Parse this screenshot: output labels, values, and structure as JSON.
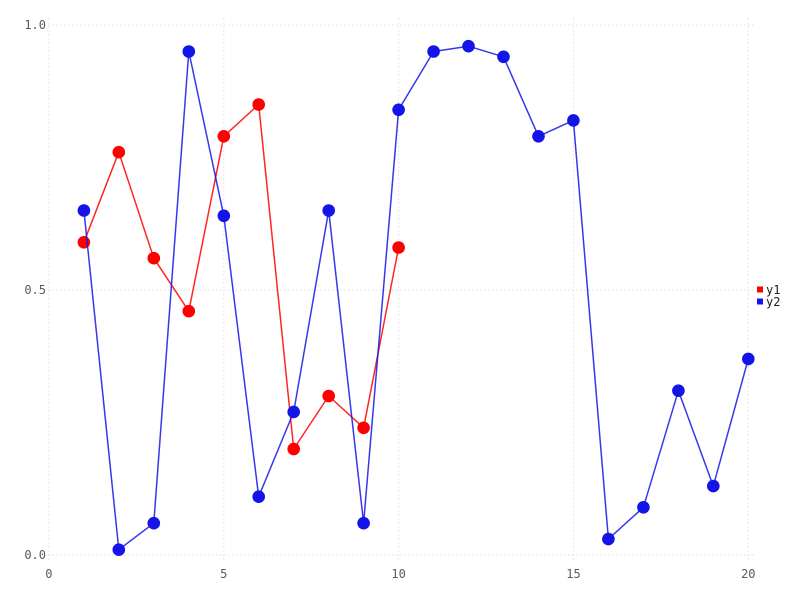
{
  "chart_data": {
    "type": "line",
    "title": "",
    "xlabel": "",
    "ylabel": "",
    "xlim": [
      0,
      20
    ],
    "ylim": [
      0.0,
      1.0
    ],
    "grid": "dotted",
    "legend_position": "right",
    "x_ticks": [
      {
        "v": 0,
        "label": "0"
      },
      {
        "v": 5,
        "label": "5"
      },
      {
        "v": 10,
        "label": "10"
      },
      {
        "v": 15,
        "label": "15"
      },
      {
        "v": 20,
        "label": "20"
      }
    ],
    "y_ticks": [
      {
        "v": 0.0,
        "label": "0.0"
      },
      {
        "v": 0.5,
        "label": "0.5"
      },
      {
        "v": 1.0,
        "label": "1.0"
      }
    ],
    "series": [
      {
        "name": "y1",
        "color": "#ff0000",
        "x": [
          1,
          2,
          3,
          4,
          5,
          6,
          7,
          8,
          9,
          10
        ],
        "y": [
          0.59,
          0.76,
          0.56,
          0.46,
          0.79,
          0.85,
          0.2,
          0.3,
          0.24,
          0.58
        ]
      },
      {
        "name": "y2",
        "color": "#1414e8",
        "x": [
          1,
          2,
          3,
          4,
          5,
          6,
          7,
          8,
          9,
          10,
          11,
          12,
          13,
          14,
          15,
          16,
          17,
          18,
          19,
          20
        ],
        "y": [
          0.65,
          0.01,
          0.06,
          0.95,
          0.64,
          0.11,
          0.27,
          0.65,
          0.06,
          0.84,
          0.95,
          0.96,
          0.94,
          0.79,
          0.82,
          0.03,
          0.09,
          0.31,
          0.13,
          0.37
        ]
      }
    ],
    "colors": {
      "background": "#ffffff",
      "gridline": "#dcdce8",
      "tick_label": "#5a5a62",
      "legend_text": "#1a1a1a"
    }
  }
}
